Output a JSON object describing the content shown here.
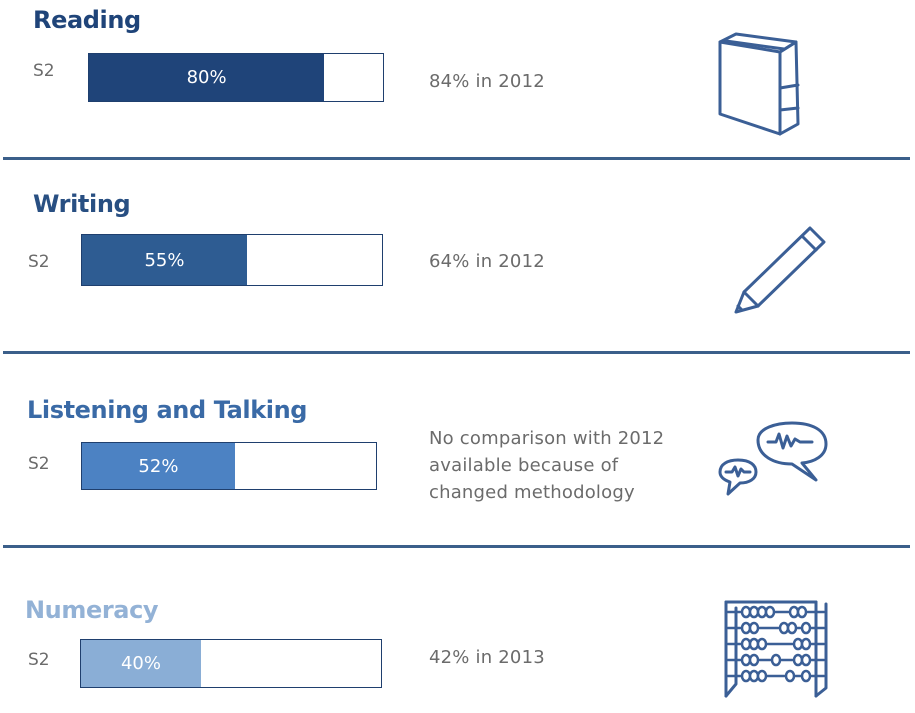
{
  "chart_data": {
    "type": "bar",
    "sections": [
      {
        "title": "Reading",
        "label": "S2",
        "value": 80,
        "value_text": "80%",
        "note_lines": [
          "84% in 2012"
        ],
        "color": "#1f4479",
        "title_color": "#1f4479",
        "icon": "book-icon"
      },
      {
        "title": "Writing",
        "label": "S2",
        "value": 55,
        "value_text": "55%",
        "note_lines": [
          "64% in 2012"
        ],
        "color": "#2e5c92",
        "title_color": "#284f82",
        "icon": "pencil-icon"
      },
      {
        "title": "Listening and Talking",
        "label": "S2",
        "value": 52,
        "value_text": "52%",
        "note_lines": [
          "No comparison with 2012",
          "available because of",
          "changed methodology"
        ],
        "color": "#4c82c3",
        "title_color": "#3a6aa6",
        "icon": "speech-bubbles-icon"
      },
      {
        "title": "Numeracy",
        "label": "S2",
        "value": 40,
        "value_text": "40%",
        "note_lines": [
          "42% in 2013"
        ],
        "color": "#8aaed6",
        "title_color": "#93b2d6",
        "icon": "abacus-icon"
      }
    ],
    "xlim": [
      0,
      100
    ]
  },
  "colors": {
    "divider": "#3b5f8a",
    "icon": "#3b5f96",
    "note_text": "#6b6b6b"
  }
}
